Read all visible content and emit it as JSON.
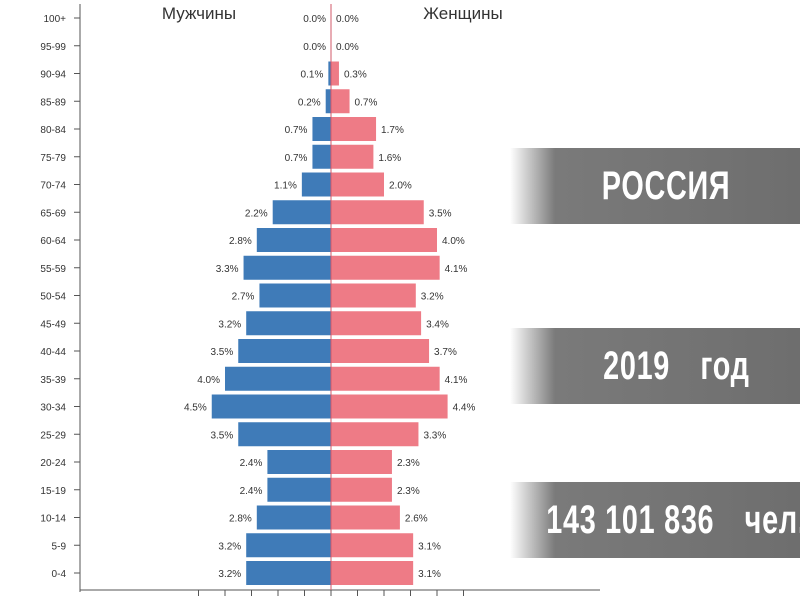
{
  "chart_data": {
    "type": "bar",
    "orientation": "horizontal-population-pyramid",
    "categories": [
      "100+",
      "95-99",
      "90-94",
      "85-89",
      "80-84",
      "75-79",
      "70-74",
      "65-69",
      "60-64",
      "55-59",
      "50-54",
      "45-49",
      "40-44",
      "35-39",
      "30-34",
      "25-29",
      "20-24",
      "15-19",
      "10-14",
      "5-9",
      "0-4"
    ],
    "series": [
      {
        "name": "Мужчины",
        "color": "#3f7bb8",
        "side": "left",
        "values": [
          0.0,
          0.0,
          0.1,
          0.2,
          0.7,
          0.7,
          1.1,
          2.2,
          2.8,
          3.3,
          2.7,
          3.2,
          3.5,
          4.0,
          4.5,
          3.5,
          2.4,
          2.4,
          2.8,
          3.2,
          3.2
        ],
        "labels": [
          "0.0%",
          "0.0%",
          "0.1%",
          "0.2%",
          "0.7%",
          "0.7%",
          "1.1%",
          "2.2%",
          "2.8%",
          "3.3%",
          "2.7%",
          "3.2%",
          "3.5%",
          "4.0%",
          "4.5%",
          "3.5%",
          "2.4%",
          "2.4%",
          "2.8%",
          "3.2%",
          "3.2%"
        ]
      },
      {
        "name": "Женщины",
        "color": "#ee7b86",
        "side": "right",
        "values": [
          0.0,
          0.0,
          0.3,
          0.7,
          1.7,
          1.6,
          2.0,
          3.5,
          4.0,
          4.1,
          3.2,
          3.4,
          3.7,
          4.1,
          4.4,
          3.3,
          2.3,
          2.3,
          2.6,
          3.1,
          3.1
        ],
        "labels": [
          "0.0%",
          "0.0%",
          "0.3%",
          "0.7%",
          "1.7%",
          "1.6%",
          "2.0%",
          "3.5%",
          "4.0%",
          "4.1%",
          "3.2%",
          "3.4%",
          "3.7%",
          "4.1%",
          "4.4%",
          "3.3%",
          "2.3%",
          "2.3%",
          "2.6%",
          "3.1%",
          "3.1%"
        ]
      }
    ],
    "xlim": [
      -5,
      5
    ],
    "grid": false,
    "legend": "top"
  },
  "banners": {
    "country": "РОССИЯ",
    "year_number": "2019",
    "year_unit": "год",
    "population_number": "143 101 836",
    "population_unit": "чел."
  },
  "colors": {
    "male": "#3f7bb8",
    "female": "#ee7b86",
    "banner": "#6e6e6e"
  }
}
